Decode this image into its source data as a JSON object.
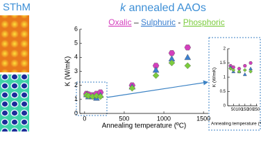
{
  "header": {
    "left_title": "SThM",
    "title_symbol": "k",
    "title": "annealed AAOs",
    "legend_separators": [
      "–",
      "-"
    ]
  },
  "chart_data": [
    {
      "type": "scatter",
      "y_label": "K (W/mK)",
      "x_label": "Annealing temperature (ºC)",
      "xlim": [
        -60,
        1560
      ],
      "xticks": [
        0,
        500,
        1000,
        1500
      ],
      "ylim": [
        0,
        6
      ],
      "yticks": [
        0,
        1,
        2,
        3,
        4,
        5,
        6
      ],
      "grid": false,
      "x": [
        25,
        50,
        100,
        150,
        200,
        600,
        900,
        1100,
        1300
      ],
      "series": [
        {
          "name": "Oxalic",
          "color": "#d43fbd",
          "marker": "hexagon",
          "values": [
            1.4,
            1.35,
            1.3,
            1.4,
            1.5,
            2.0,
            3.4,
            4.3,
            4.7
          ]
        },
        {
          "name": "Sulphuric",
          "color": "#3b7fd0",
          "marker": "triangle",
          "values": [
            1.35,
            1.2,
            1.2,
            1.1,
            1.3,
            1.9,
            3.1,
            3.9,
            4.0
          ]
        },
        {
          "name": "Phosphoric",
          "color": "#7ccc3e",
          "marker": "diamond",
          "values": [
            1.3,
            1.25,
            1.2,
            1.25,
            1.2,
            1.8,
            2.7,
            3.6,
            3.4
          ]
        }
      ]
    },
    {
      "type": "scatter",
      "y_label": "K (W/mK)",
      "x_label": "Annealing temperature (ºC)",
      "xlim": [
        0,
        260
      ],
      "xticks": [
        50,
        100,
        150,
        200,
        250
      ],
      "ylim": [
        0,
        2
      ],
      "yticks": [
        0,
        0.5,
        1,
        1.5,
        2
      ],
      "grid": false,
      "x": [
        25,
        50,
        100,
        150,
        200
      ],
      "series": [
        {
          "color": "#d43fbd",
          "marker": "hexagon",
          "values": [
            1.4,
            1.35,
            1.3,
            1.4,
            1.5
          ]
        },
        {
          "color": "#3b7fd0",
          "marker": "triangle",
          "values": [
            1.35,
            1.2,
            1.2,
            1.1,
            1.3
          ]
        },
        {
          "color": "#7ccc3e",
          "marker": "diamond",
          "values": [
            1.3,
            1.25,
            1.2,
            1.25,
            1.2
          ]
        }
      ]
    }
  ]
}
